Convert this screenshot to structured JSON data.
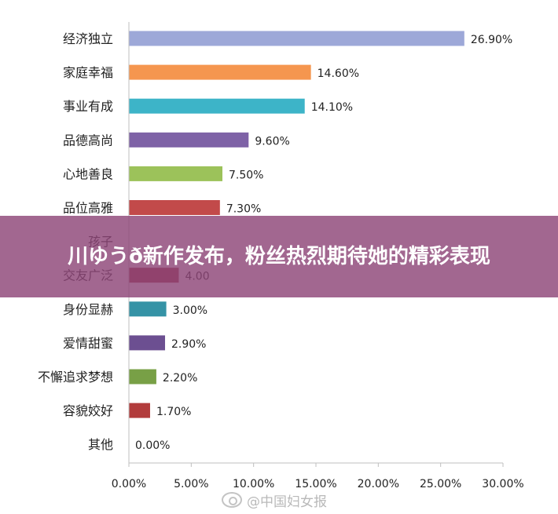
{
  "chart_data": {
    "type": "bar",
    "orientation": "horizontal",
    "categories": [
      "经济独立",
      "家庭幸福",
      "事业有成",
      "品德高尚",
      "心地善良",
      "品位高雅",
      "孩子",
      "交友广泛",
      "身份显赫",
      "爱情甜蜜",
      "不懈追求梦想",
      "容貌姣好",
      "其他"
    ],
    "values": [
      26.9,
      14.6,
      14.1,
      9.6,
      7.5,
      7.3,
      null,
      4.0,
      3.0,
      2.9,
      2.2,
      1.7,
      0.0
    ],
    "value_labels": [
      "26.90%",
      "14.60%",
      "14.10%",
      "9.60%",
      "7.50%",
      "7.30%",
      "",
      "4.00",
      "3.00%",
      "2.90%",
      "2.20%",
      "1.70%",
      "0.00%"
    ],
    "colors": [
      "#9da8d8",
      "#f5964f",
      "#3db4c8",
      "#7e62a6",
      "#9cc25a",
      "#c24a4a",
      "#5b6fa8",
      "#a2363f",
      "#3593a6",
      "#6c4f91",
      "#78a046",
      "#b23c3c",
      "#888888"
    ],
    "xlim": [
      0,
      30
    ],
    "xticks": [
      0,
      5,
      10,
      15,
      20,
      25,
      30
    ],
    "xtick_labels": [
      "0.00%",
      "5.00%",
      "10.00%",
      "15.00%",
      "20.00%",
      "25.00%",
      "30.00%"
    ],
    "title": "",
    "xlabel": "",
    "ylabel": "",
    "grid": false,
    "legend": "none"
  },
  "overlay": {
    "headline": "川ゆうð新作发布，粉丝热烈期待她的精彩表现"
  },
  "watermark": {
    "text": "@中国妇女报",
    "icon": "weibo-icon"
  }
}
